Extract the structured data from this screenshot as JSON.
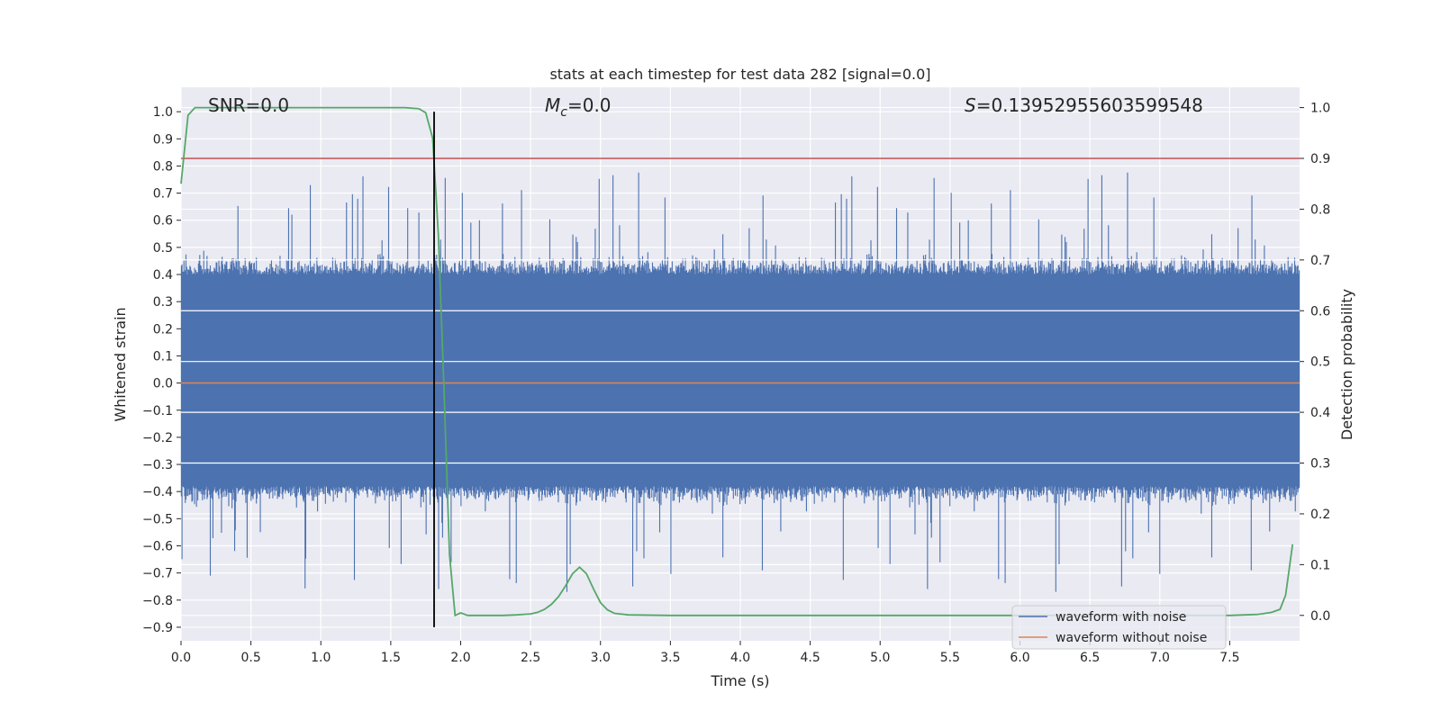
{
  "chart_data": {
    "type": "line",
    "title": "stats at each timestep for test data 282 [signal=0.0]",
    "xlabel": "Time (s)",
    "ylabel": "Whitened strain",
    "y2label": "Detection probability",
    "xlim": [
      0.0,
      8.0
    ],
    "ylim": [
      -0.95,
      1.09
    ],
    "y2lim": [
      -0.05,
      1.04
    ],
    "x_ticks": [
      "0.0",
      "0.5",
      "1.0",
      "1.5",
      "2.0",
      "2.5",
      "3.0",
      "3.5",
      "4.0",
      "4.5",
      "5.0",
      "5.5",
      "6.0",
      "6.5",
      "7.0",
      "7.5"
    ],
    "y_ticks": [
      "1.0",
      "0.9",
      "0.8",
      "0.7",
      "0.6",
      "0.5",
      "0.4",
      "0.3",
      "0.2",
      "0.1",
      "0.0",
      "−0.1",
      "−0.2",
      "−0.3",
      "−0.4",
      "−0.5",
      "−0.6",
      "−0.7",
      "−0.8",
      "−0.9"
    ],
    "y2_ticks": [
      "1.0",
      "0.9",
      "0.8",
      "0.7",
      "0.6",
      "0.5",
      "0.4",
      "0.3",
      "0.2",
      "0.1",
      "0.0"
    ],
    "annotations": {
      "snr": "SNR=0.0",
      "mc_symbol": "M",
      "mc_sub": "c",
      "mc_value": "=0.0",
      "s_symbol": "S",
      "s_value": "=0.13952955603599548"
    },
    "series": [
      {
        "name": "waveform with noise",
        "color": "#4c72b0",
        "sample_rate_hz": 2048,
        "envelope_max_y": 1.0,
        "envelope_min_y": -0.9,
        "typical_abs_y": 0.4
      },
      {
        "name": "waveform without noise",
        "color": "#dd8452",
        "x": [
          0.0,
          8.0
        ],
        "y": [
          0.0,
          0.0
        ]
      },
      {
        "name": "detection probability",
        "axis": "right",
        "color": "#55a868",
        "x": [
          0.0,
          0.05,
          0.1,
          0.2,
          0.3,
          0.5,
          0.8,
          1.0,
          1.3,
          1.5,
          1.6,
          1.7,
          1.75,
          1.8,
          1.84,
          1.88,
          1.92,
          1.96,
          2.0,
          2.05,
          2.1,
          2.3,
          2.4,
          2.5,
          2.55,
          2.6,
          2.65,
          2.7,
          2.75,
          2.8,
          2.85,
          2.9,
          2.95,
          3.0,
          3.05,
          3.1,
          3.2,
          3.5,
          4.0,
          5.0,
          6.0,
          7.0,
          7.5,
          7.7,
          7.8,
          7.86,
          7.9,
          7.95
        ],
        "y": [
          0.85,
          0.985,
          1.0,
          1.0,
          1.0,
          1.0,
          1.0,
          1.0,
          1.0,
          1.0,
          1.0,
          0.998,
          0.99,
          0.94,
          0.75,
          0.45,
          0.12,
          0.0,
          0.005,
          0.0,
          0.0,
          0.0,
          0.001,
          0.003,
          0.006,
          0.012,
          0.022,
          0.037,
          0.058,
          0.082,
          0.095,
          0.082,
          0.052,
          0.025,
          0.011,
          0.004,
          0.001,
          0.0,
          0.0,
          0.0,
          0.0,
          0.0,
          0.0,
          0.002,
          0.006,
          0.012,
          0.04,
          0.14
        ]
      },
      {
        "name": "threshold",
        "axis": "right",
        "color": "#c44e52",
        "x": [
          0.0,
          8.0
        ],
        "y": [
          0.9,
          0.9
        ]
      },
      {
        "name": "detection time",
        "color": "#000000",
        "x": [
          1.81,
          1.81
        ],
        "y": [
          -0.9,
          1.0
        ]
      }
    ],
    "legend": {
      "placement": "lower-right",
      "entries": [
        {
          "label": "waveform with noise",
          "color": "#4c72b0"
        },
        {
          "label": "waveform without noise",
          "color": "#dd8452"
        }
      ]
    },
    "grid": true,
    "background": "#eaeaf2"
  }
}
